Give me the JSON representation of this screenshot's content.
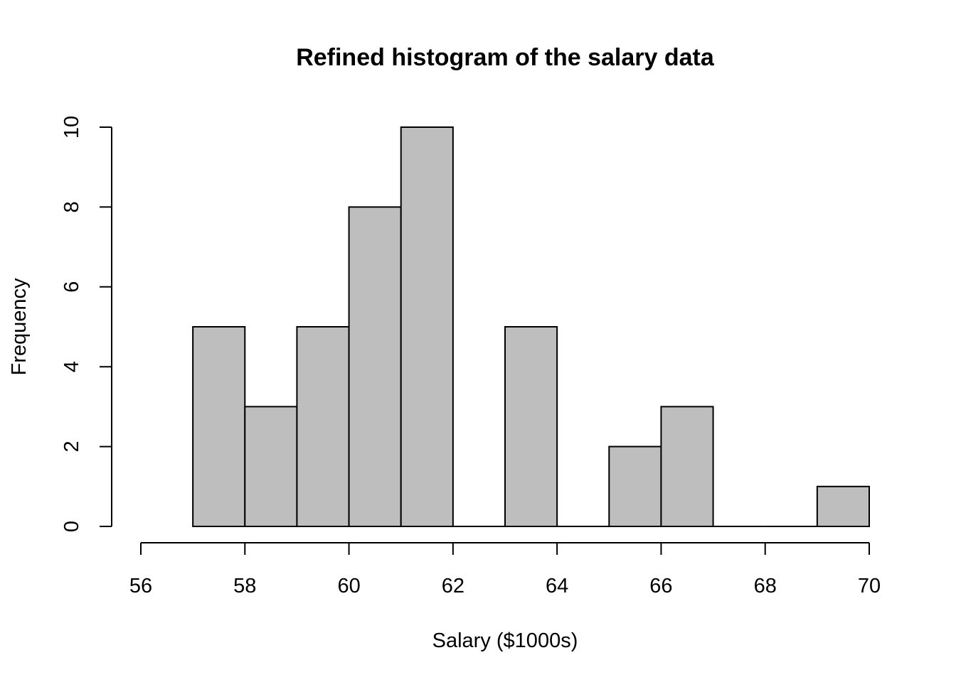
{
  "chart_data": {
    "type": "bar",
    "title": "Refined histogram of the salary data",
    "xlabel": "Salary ($1000s)",
    "ylabel": "Frequency",
    "bin_edges": [
      57,
      58,
      59,
      60,
      61,
      62,
      63,
      64,
      65,
      66,
      67,
      68,
      69,
      70
    ],
    "values": [
      5,
      3,
      5,
      8,
      10,
      0,
      5,
      0,
      2,
      3,
      0,
      0,
      1
    ],
    "xlim": [
      56,
      70
    ],
    "ylim": [
      0,
      10
    ],
    "x_ticks": [
      56,
      58,
      60,
      62,
      64,
      66,
      68,
      70
    ],
    "y_ticks": [
      0,
      2,
      4,
      6,
      8,
      10
    ],
    "bar_color": "#bebebe",
    "grid": false
  }
}
